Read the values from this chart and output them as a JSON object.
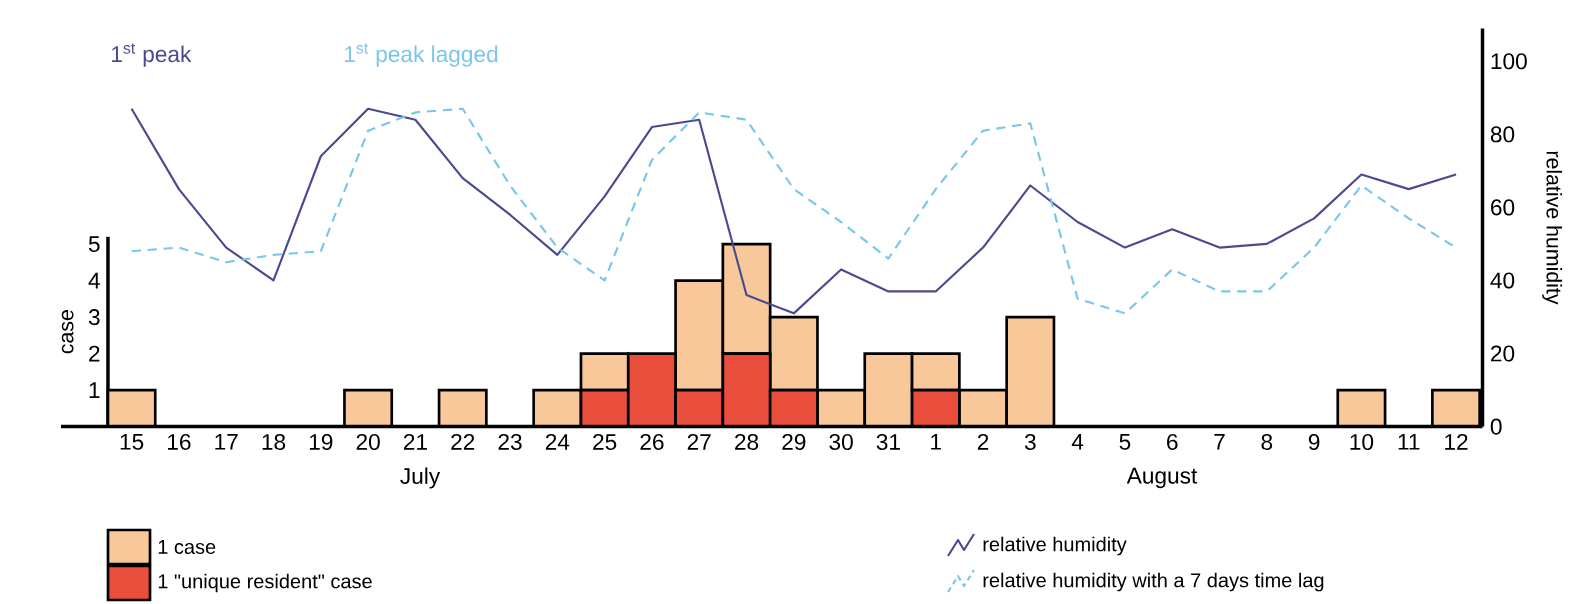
{
  "chart_data": {
    "type": "bar",
    "stacked": true,
    "categories": [
      "15",
      "16",
      "17",
      "18",
      "19",
      "20",
      "21",
      "22",
      "23",
      "24",
      "25",
      "26",
      "27",
      "28",
      "29",
      "30",
      "31",
      "1",
      "2",
      "3",
      "4",
      "5",
      "6",
      "7",
      "8",
      "9",
      "10",
      "11",
      "12"
    ],
    "ylabel": "case",
    "ylim": [
      0,
      5.2
    ],
    "yticks": [
      1,
      2,
      3,
      4,
      5
    ],
    "y2label": "relative humidity",
    "y2lim": [
      0,
      109
    ],
    "y2ticks": [
      0,
      20,
      40,
      60,
      80,
      100
    ],
    "legend": "bottom",
    "annotations": [
      "1$^{st}$ peak",
      "1$^{st}$ peak lagged",
      "July",
      "August"
    ],
    "series": [
      {
        "name": "1 \"unique resident\" case",
        "color": "#e94e3c",
        "values": [
          0,
          0,
          0,
          0,
          0,
          0,
          0,
          0,
          0,
          0,
          1,
          2,
          1,
          2,
          1,
          0,
          0,
          1,
          0,
          0,
          0,
          0,
          0,
          0,
          0,
          0,
          0,
          0,
          0
        ]
      },
      {
        "name": "1 case",
        "color": "#f8c89a",
        "values": [
          1,
          0,
          0,
          0,
          0,
          1,
          0,
          1,
          0,
          1,
          1,
          0,
          3,
          3,
          2,
          1,
          2,
          1,
          1,
          3,
          0,
          0,
          0,
          0,
          0,
          0,
          1,
          0,
          1
        ]
      },
      {
        "name": "relative humidity",
        "type": "line",
        "axis": "y2",
        "line_style": "solid",
        "color": "#4a4a8f",
        "values": [
          87,
          65,
          49,
          40,
          74,
          87,
          84,
          68,
          58,
          47,
          63,
          82,
          84,
          36,
          31,
          43,
          37,
          37,
          49,
          66,
          56,
          49,
          54,
          49,
          50,
          57,
          69,
          65,
          69
        ]
      },
      {
        "name": "relative humidity with a 7 days time lag",
        "type": "line",
        "axis": "y2",
        "line_style": "dashed",
        "color": "#79c6ea",
        "values": [
          48,
          49,
          45,
          47,
          48,
          81,
          86,
          87,
          66,
          49,
          40,
          73,
          86,
          84,
          65,
          56,
          46,
          65,
          81,
          83,
          35,
          31,
          43,
          37,
          37,
          49,
          66,
          57,
          49
        ]
      }
    ]
  }
}
